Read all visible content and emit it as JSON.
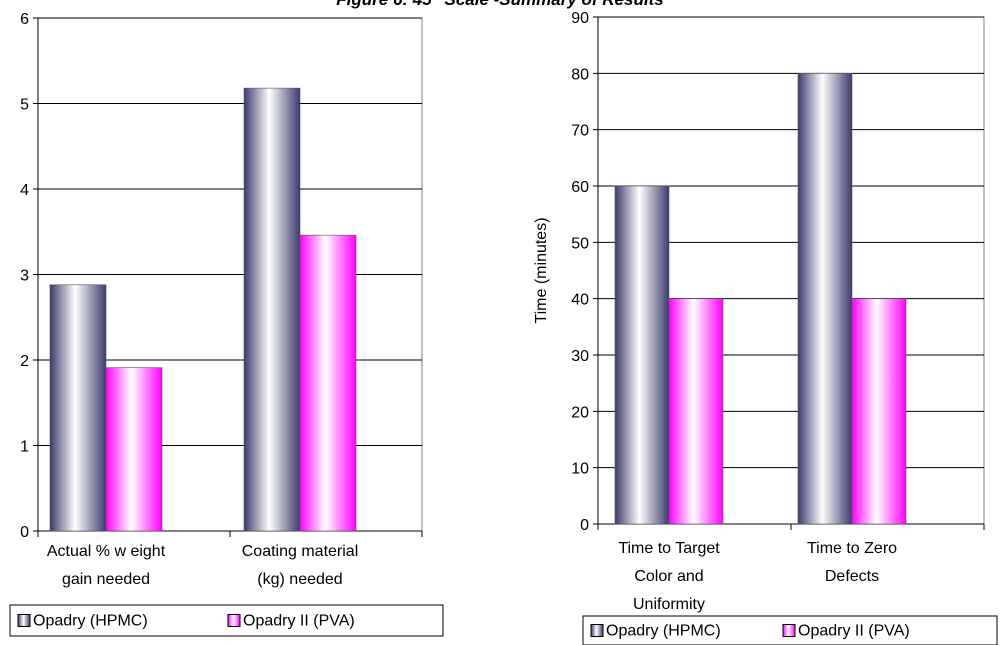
{
  "figure_title": "Figure 6: 45\" Scale -Summary of Results",
  "colors": {
    "hpmc": "#3b3b6e",
    "pva": "#ff00ff",
    "grid": "#000000"
  },
  "chart_data": [
    {
      "type": "bar",
      "categories": [
        [
          "Actual % w eight",
          "gain needed"
        ],
        [
          "Coating material",
          "(kg) needed"
        ]
      ],
      "series": [
        {
          "name": "Opadry (HPMC)",
          "values": [
            2.88,
            5.18
          ]
        },
        {
          "name": "Opadry II (PVA)",
          "values": [
            1.91,
            3.46
          ]
        }
      ],
      "title": "",
      "xlabel": "",
      "ylabel": "",
      "ylim": [
        0,
        6
      ],
      "yticks": [
        0,
        1,
        2,
        3,
        4,
        5,
        6
      ],
      "grid": true,
      "legend": "bottom"
    },
    {
      "type": "bar",
      "categories": [
        [
          "Time to Target",
          "Color and",
          "Uniformity"
        ],
        [
          "Time to Zero",
          "Defects"
        ]
      ],
      "series": [
        {
          "name": "Opadry (HPMC)",
          "values": [
            60,
            80
          ]
        },
        {
          "name": "Opadry II (PVA)",
          "values": [
            40,
            40
          ]
        }
      ],
      "title": "",
      "xlabel": "",
      "ylabel": "Time (minutes)",
      "ylim": [
        0,
        90
      ],
      "yticks": [
        0,
        10,
        20,
        30,
        40,
        50,
        60,
        70,
        80,
        90
      ],
      "grid": true,
      "legend": "bottom"
    }
  ]
}
